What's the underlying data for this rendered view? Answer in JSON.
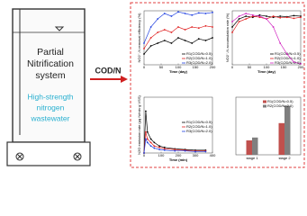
{
  "diagram": {
    "reactor_title": [
      "Partial",
      "Nitrification",
      "system"
    ],
    "influent": [
      "High-strength",
      "nitrogen",
      "wastewater"
    ],
    "arrow_label": "COD/N"
  },
  "chart_data": [
    {
      "type": "line",
      "xlabel": "Time (day)",
      "ylabel": "NO2⁻-N removal efficiency (%)",
      "x": [
        0,
        20,
        40,
        60,
        80,
        100,
        120,
        140,
        160,
        180,
        200
      ],
      "xlim": [
        0,
        200
      ],
      "xticks": [
        0,
        50,
        100,
        150,
        200
      ],
      "ylim": [
        0,
        100
      ],
      "series": [
        {
          "name": "R1(COD/N=0.5)",
          "color": "#000000",
          "values": [
            20,
            35,
            40,
            45,
            40,
            50,
            45,
            40,
            48,
            45,
            50
          ]
        },
        {
          "name": "R2(COD/N=1.0)",
          "color": "#e02020",
          "values": [
            30,
            50,
            60,
            65,
            60,
            70,
            65,
            70,
            68,
            72,
            70
          ]
        },
        {
          "name": "R3(COD/N=2.0)",
          "color": "#2040e0",
          "values": [
            40,
            70,
            85,
            95,
            90,
            98,
            95,
            92,
            96,
            95,
            97
          ]
        }
      ]
    },
    {
      "type": "line",
      "xlabel": "Time (day)",
      "ylabel": "NO2⁻-N accumulation rate (%)",
      "x": [
        0,
        20,
        40,
        60,
        80,
        100,
        120,
        140,
        160,
        180,
        200
      ],
      "xlim": [
        0,
        200
      ],
      "xticks": [
        0,
        50,
        100,
        150,
        200
      ],
      "ylim": [
        0,
        100
      ],
      "series": [
        {
          "name": "R1(COD/N=0.5)",
          "color": "#000000",
          "values": [
            70,
            85,
            90,
            88,
            92,
            90,
            88,
            90,
            89,
            91,
            90
          ]
        },
        {
          "name": "R2(COD/N=1.0)",
          "color": "#e02020",
          "values": [
            60,
            80,
            85,
            90,
            88,
            85,
            90,
            87,
            88,
            86,
            88
          ]
        },
        {
          "name": "R3(COD/N=2.0)",
          "color": "#d020c0",
          "values": [
            80,
            90,
            95,
            92,
            90,
            85,
            70,
            40,
            20,
            5,
            2
          ]
        }
      ]
    },
    {
      "type": "line",
      "xlabel": "Time (min)",
      "ylabel": "N2O emission rate (μg N/min·g VSS)",
      "x": [
        0,
        10,
        20,
        40,
        60,
        90,
        120,
        180,
        240,
        300,
        360
      ],
      "xlim": [
        0,
        400
      ],
      "xticks": [
        0,
        100,
        200,
        300,
        400
      ],
      "ylim": [
        0,
        8
      ],
      "series": [
        {
          "name": "R1(COD/N=0.5)",
          "color": "#000000",
          "values": [
            0,
            6,
            3,
            2,
            1.5,
            1,
            0.8,
            0.6,
            0.5,
            0.4,
            0.4
          ]
        },
        {
          "name": "R2(COD/N=1.0)",
          "color": "#e02020",
          "values": [
            0,
            3,
            2,
            1.5,
            1,
            0.8,
            0.6,
            0.5,
            0.4,
            0.3,
            0.3
          ]
        },
        {
          "name": "R3(COD/N=2.0)",
          "color": "#2040e0",
          "values": [
            0,
            2,
            1.5,
            1,
            0.7,
            0.5,
            0.4,
            0.3,
            0.3,
            0.2,
            0.2
          ]
        }
      ]
    },
    {
      "type": "bar",
      "categories": [
        "stage 1",
        "stage 2"
      ],
      "ylim": [
        0,
        1
      ],
      "series": [
        {
          "name": "R1(COD/N=0.5)",
          "color": "#c0504d",
          "values": [
            0.25,
            0.55
          ]
        },
        {
          "name": "R2(COD/N=2.0)",
          "color": "#7f7f7f",
          "values": [
            0.3,
            0.85
          ]
        }
      ]
    }
  ]
}
